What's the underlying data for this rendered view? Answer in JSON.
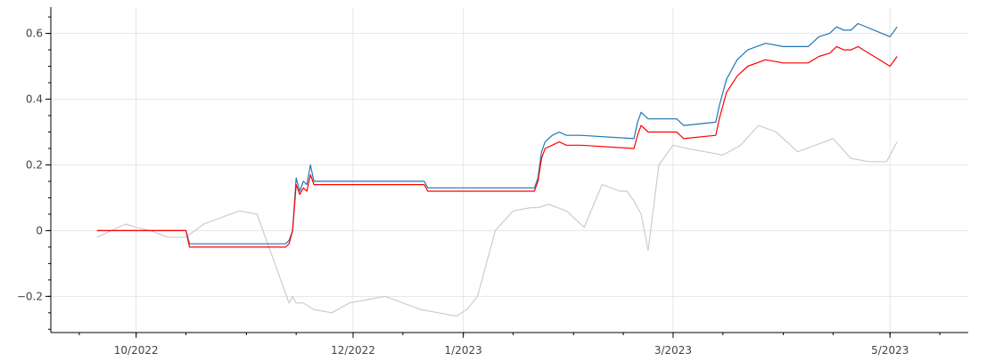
{
  "chart_data": {
    "type": "line",
    "title": "",
    "xlabel": "",
    "ylabel": "",
    "x_ticks": [
      {
        "date": "2022-10-01",
        "label": "10/2022"
      },
      {
        "date": "2022-12-01",
        "label": "12/2022"
      },
      {
        "date": "2023-01-01",
        "label": "1/2023"
      },
      {
        "date": "2023-03-01",
        "label": "3/2023"
      },
      {
        "date": "2023-05-01",
        "label": "5/2023"
      }
    ],
    "y_ticks": [
      {
        "value": -0.2,
        "label": "−0.2"
      },
      {
        "value": 0,
        "label": "0"
      },
      {
        "value": 0.2,
        "label": "0.2"
      },
      {
        "value": 0.4,
        "label": "0.4"
      },
      {
        "value": 0.6,
        "label": "0.6"
      }
    ],
    "xlim": [
      "2022-09-07",
      "2023-05-23"
    ],
    "ylim": [
      -0.31,
      0.68
    ],
    "grid": true,
    "series": [
      {
        "color": "#cccccc",
        "x": [
          "2022-09-20",
          "2022-09-24",
          "2022-09-28",
          "2022-10-01",
          "2022-10-05",
          "2022-10-10",
          "2022-10-15",
          "2022-10-20",
          "2022-10-25",
          "2022-10-30",
          "2022-11-04",
          "2022-11-09",
          "2022-11-13",
          "2022-11-14",
          "2022-11-15",
          "2022-11-17",
          "2022-11-20",
          "2022-11-25",
          "2022-11-30",
          "2022-12-05",
          "2022-12-10",
          "2022-12-15",
          "2022-12-20",
          "2022-12-25",
          "2022-12-30",
          "2023-01-02",
          "2023-01-05",
          "2023-01-10",
          "2023-01-15",
          "2023-01-20",
          "2023-01-22",
          "2023-01-25",
          "2023-01-30",
          "2023-02-04",
          "2023-02-09",
          "2023-02-14",
          "2023-02-16",
          "2023-02-18",
          "2023-02-20",
          "2023-02-22",
          "2023-02-25",
          "2023-03-01",
          "2023-03-05",
          "2023-03-10",
          "2023-03-15",
          "2023-03-20",
          "2023-03-25",
          "2023-03-30",
          "2023-04-05",
          "2023-04-10",
          "2023-04-15",
          "2023-04-20",
          "2023-04-25",
          "2023-04-30",
          "2023-05-03"
        ],
        "y": [
          -0.02,
          0.0,
          0.02,
          0.01,
          0.0,
          -0.02,
          -0.02,
          0.02,
          0.04,
          0.06,
          0.05,
          -0.1,
          -0.22,
          -0.2,
          -0.22,
          -0.22,
          -0.24,
          -0.25,
          -0.22,
          -0.21,
          -0.2,
          -0.22,
          -0.24,
          -0.25,
          -0.26,
          -0.24,
          -0.2,
          0.0,
          0.06,
          0.07,
          0.07,
          0.08,
          0.06,
          0.01,
          0.14,
          0.12,
          0.12,
          0.09,
          0.05,
          -0.06,
          0.2,
          0.26,
          0.25,
          0.24,
          0.23,
          0.26,
          0.32,
          0.3,
          0.24,
          0.26,
          0.28,
          0.22,
          0.21,
          0.21,
          0.27
        ]
      },
      {
        "color": "#1f77b4",
        "x": [
          "2022-09-20",
          "2022-10-15",
          "2022-10-16",
          "2022-11-12",
          "2022-11-13",
          "2022-11-14",
          "2022-11-15",
          "2022-11-16",
          "2022-11-17",
          "2022-11-18",
          "2022-11-19",
          "2022-11-20",
          "2022-11-21",
          "2022-11-22",
          "2022-12-20",
          "2022-12-21",
          "2022-12-22",
          "2023-01-21",
          "2023-01-22",
          "2023-01-23",
          "2023-01-24",
          "2023-01-26",
          "2023-01-28",
          "2023-01-30",
          "2023-02-01",
          "2023-02-03",
          "2023-02-18",
          "2023-02-19",
          "2023-02-20",
          "2023-02-22",
          "2023-02-25",
          "2023-02-27",
          "2023-03-02",
          "2023-03-04",
          "2023-03-13",
          "2023-03-14",
          "2023-03-16",
          "2023-03-19",
          "2023-03-22",
          "2023-03-27",
          "2023-04-01",
          "2023-04-05",
          "2023-04-08",
          "2023-04-11",
          "2023-04-14",
          "2023-04-16",
          "2023-04-18",
          "2023-04-20",
          "2023-04-22",
          "2023-05-01",
          "2023-05-03"
        ],
        "y": [
          0.0,
          0.0,
          -0.04,
          -0.04,
          -0.03,
          0.0,
          0.16,
          0.12,
          0.15,
          0.14,
          0.2,
          0.15,
          0.15,
          0.15,
          0.15,
          0.15,
          0.13,
          0.13,
          0.16,
          0.24,
          0.27,
          0.29,
          0.3,
          0.29,
          0.29,
          0.29,
          0.28,
          0.33,
          0.36,
          0.34,
          0.34,
          0.34,
          0.34,
          0.32,
          0.33,
          0.38,
          0.46,
          0.52,
          0.55,
          0.57,
          0.56,
          0.56,
          0.56,
          0.59,
          0.6,
          0.62,
          0.61,
          0.61,
          0.63,
          0.59,
          0.62
        ]
      },
      {
        "color": "#ff0000",
        "x": [
          "2022-09-20",
          "2022-10-15",
          "2022-10-16",
          "2022-11-12",
          "2022-11-13",
          "2022-11-14",
          "2022-11-15",
          "2022-11-16",
          "2022-11-17",
          "2022-11-18",
          "2022-11-19",
          "2022-11-20",
          "2022-11-21",
          "2022-11-22",
          "2022-12-20",
          "2022-12-21",
          "2022-12-22",
          "2023-01-21",
          "2023-01-22",
          "2023-01-23",
          "2023-01-24",
          "2023-01-26",
          "2023-01-28",
          "2023-01-30",
          "2023-02-01",
          "2023-02-03",
          "2023-02-18",
          "2023-02-19",
          "2023-02-20",
          "2023-02-22",
          "2023-02-25",
          "2023-02-27",
          "2023-03-02",
          "2023-03-04",
          "2023-03-13",
          "2023-03-14",
          "2023-03-16",
          "2023-03-19",
          "2023-03-22",
          "2023-03-27",
          "2023-04-01",
          "2023-04-05",
          "2023-04-08",
          "2023-04-11",
          "2023-04-14",
          "2023-04-16",
          "2023-04-18",
          "2023-04-20",
          "2023-04-22",
          "2023-05-01",
          "2023-05-03"
        ],
        "y": [
          0.0,
          0.0,
          -0.05,
          -0.05,
          -0.04,
          0.0,
          0.14,
          0.11,
          0.13,
          0.12,
          0.17,
          0.14,
          0.14,
          0.14,
          0.14,
          0.14,
          0.12,
          0.12,
          0.15,
          0.22,
          0.25,
          0.26,
          0.27,
          0.26,
          0.26,
          0.26,
          0.25,
          0.29,
          0.32,
          0.3,
          0.3,
          0.3,
          0.3,
          0.28,
          0.29,
          0.34,
          0.42,
          0.47,
          0.5,
          0.52,
          0.51,
          0.51,
          0.51,
          0.53,
          0.54,
          0.56,
          0.55,
          0.55,
          0.56,
          0.5,
          0.53
        ]
      }
    ]
  }
}
